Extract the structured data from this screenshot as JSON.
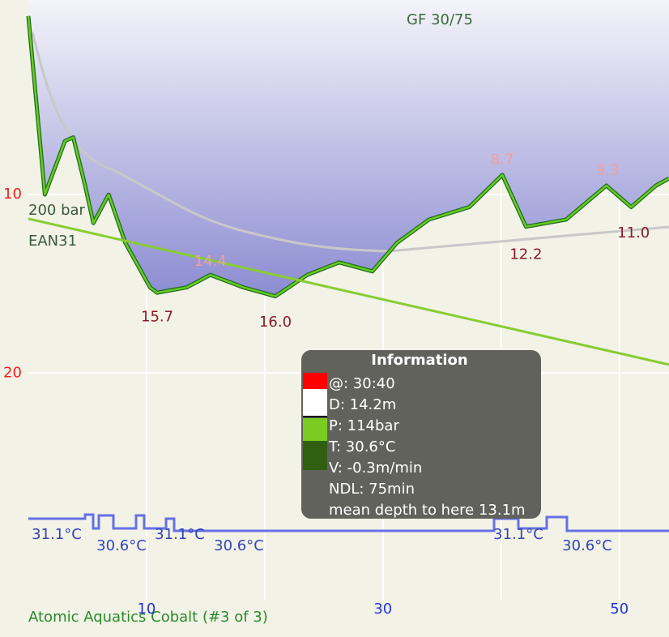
{
  "chart_data": {
    "type": "line",
    "title": "GF 30/75",
    "x": [
      0,
      1.4,
      3.1,
      3.8,
      4.8,
      5.5,
      6.8,
      8.2,
      10.3,
      10.9,
      13.4,
      15.4,
      18.2,
      20.9,
      23.6,
      26.3,
      29.1,
      31.2,
      33.9,
      37.3,
      40.1,
      42.1,
      45.5,
      48.9,
      51.0,
      53.1,
      54.2
    ],
    "series": [
      {
        "name": "depth",
        "color": "#66cc22",
        "values": [
          0,
          10,
          7.0,
          6.8,
          9.5,
          11.6,
          10,
          12.7,
          15.2,
          15.5,
          15.2,
          14.5,
          15.2,
          15.7,
          14.5,
          13.8,
          14.3,
          12.7,
          11.4,
          10.7,
          8.9,
          11.8,
          11.4,
          9.5,
          10.7,
          9.5,
          9.1
        ]
      }
    ],
    "pressure": {
      "x": [
        0,
        30.7,
        54.2
      ],
      "values": [
        200,
        114,
        48
      ],
      "color": "#88cc33",
      "axis": "y2"
    },
    "xlim": [
      0,
      54.2
    ],
    "ylim": [
      -0.9,
      32.7
    ],
    "y2lim": [
      -197,
      428
    ],
    "xticks": [
      10,
      30,
      50
    ],
    "yticks": [
      10,
      20
    ],
    "xgrid": [
      10,
      20,
      30,
      40,
      50
    ],
    "grid": true,
    "max_depth_labels": {
      "x": [
        10.9,
        20.9,
        42.1,
        51.2
      ],
      "values": [
        15.7,
        16.0,
        12.2,
        11.0
      ],
      "value_labels": [
        "15.7",
        "16.0",
        "12.2",
        "11.0"
      ]
    },
    "min_depth_labels": {
      "x": [
        15.4,
        40.1,
        49.0
      ],
      "values": [
        14.4,
        8.7,
        9.3
      ],
      "value_labels": [
        "14.4",
        "8.7",
        "9.3"
      ]
    },
    "gas_labels": [
      "200 bar",
      "EAN31"
    ],
    "temperature_labels": [
      "31.1°C",
      "30.6°C",
      "31.1°C",
      "30.6°C",
      "31.1°C",
      "30.6°C"
    ],
    "info": {
      "title": "Information",
      "lines": [
        "@: 30:40",
        "D: 14.2m",
        "P: 114bar",
        "T: 30.6°C",
        "V: -0.3m/min",
        "NDL: 75min",
        "mean depth to here 13.1m"
      ]
    },
    "footer": "Atomic Aquatics Cobalt (#3 of 3)"
  }
}
